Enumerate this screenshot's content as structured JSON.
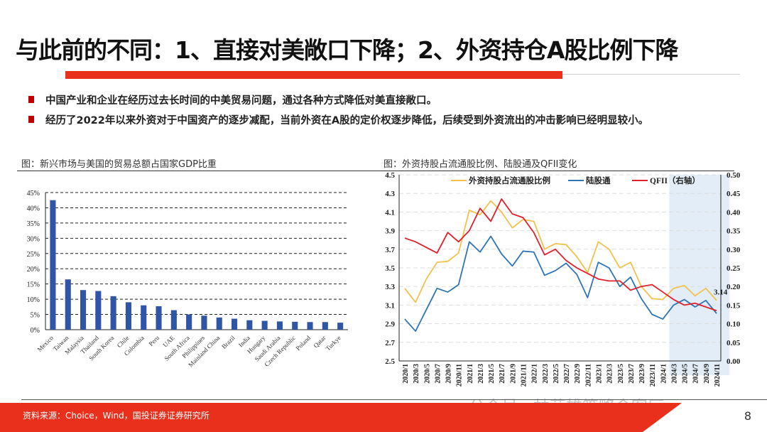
{
  "title": "与此前的不同：1、直接对美敞口下降；2、外资持仓A股比例下降",
  "bullets": [
    "中国产业和企业在经历过去长时间的中美贸易问题，通过各种方式降低对美直接敞口。",
    "经历了2022年以来外资对于中国资产的逐步减配，当前外资在A股的定价权逐步降低，后续受到外资流出的冲击影响已经明显较小。"
  ],
  "captions": [
    "图：新兴市场与美国的贸易总额占国家GDP比重",
    "图：外资持股占流通股比例、陆股通及QFII变化"
  ],
  "source": "资料来源：Choice，Wind，国投证券证券研究所",
  "page_number": "8",
  "watermark": "公众号 · 林荣雄策略会客厅",
  "colors": {
    "accent": "#e8301c",
    "bar": "#2f55a4",
    "yellow": "#f2c14e",
    "blue": "#2e75b6",
    "red": "#e0202a",
    "shade": "#dbe8f5"
  },
  "chart_data": [
    {
      "type": "bar",
      "categories": [
        "Mexico",
        "Taiwan",
        "Malaysia",
        "Thailand",
        "South Korea",
        "Chile",
        "Colombia",
        "Peru",
        "UAE",
        "South Africa",
        "Philippines",
        "Mainland China",
        "Brazil",
        "India",
        "Hungary",
        "Saudi Arabia",
        "Czech Republic",
        "Poland",
        "Qatar",
        "Turkye"
      ],
      "values": [
        42.5,
        16.5,
        13,
        12.7,
        11,
        9,
        8,
        7.7,
        6.4,
        5,
        4.6,
        4,
        3.6,
        3.1,
        2.9,
        2.7,
        2.6,
        2.5,
        2.5,
        2.3
      ],
      "ylim": [
        0,
        45
      ],
      "yticks": [
        "0%",
        "5%",
        "10%",
        "15%",
        "20%",
        "25%",
        "30%",
        "35%",
        "40%",
        "45%"
      ],
      "grid": true
    },
    {
      "type": "line",
      "x": [
        "2020/1",
        "2020/3",
        "2020/5",
        "2020/7",
        "2020/9",
        "2020/11",
        "2021/1",
        "2021/3",
        "2021/5",
        "2021/7",
        "2021/9",
        "2021/11",
        "2022/1",
        "2022/3",
        "2022/5",
        "2022/7",
        "2022/9",
        "2022/11",
        "2023/1",
        "2023/3",
        "2023/5",
        "2023/7",
        "2023/9",
        "2023/11",
        "2024/1",
        "2024/3",
        "2024/5",
        "2024/7",
        "2024/9",
        "2024/11"
      ],
      "series": [
        {
          "name": "外资持股占流通股比例",
          "axis": "left",
          "color": "#f2c14e",
          "values": [
            3.28,
            3.13,
            3.38,
            3.56,
            3.57,
            3.66,
            4.12,
            4.07,
            4.22,
            4.1,
            3.93,
            4.02,
            4.0,
            3.7,
            3.76,
            3.75,
            3.62,
            3.45,
            3.78,
            3.7,
            3.5,
            3.56,
            3.3,
            3.17,
            3.16,
            3.28,
            3.31,
            3.2,
            3.28,
            3.15
          ]
        },
        {
          "name": "陆股通",
          "axis": "left",
          "color": "#2e75b6",
          "values": [
            2.95,
            2.82,
            3.05,
            3.28,
            3.24,
            3.32,
            3.78,
            3.67,
            3.84,
            3.65,
            3.52,
            3.68,
            3.67,
            3.42,
            3.47,
            3.55,
            3.43,
            3.18,
            3.56,
            3.5,
            3.3,
            3.4,
            3.17,
            3.0,
            2.95,
            3.1,
            3.16,
            3.08,
            3.15,
            3.01
          ]
        },
        {
          "name": "QFII（右轴）",
          "axis": "right",
          "color": "#e0202a",
          "values": [
            0.33,
            0.32,
            0.305,
            0.29,
            0.345,
            0.32,
            0.35,
            0.41,
            0.375,
            0.435,
            0.395,
            0.385,
            0.345,
            0.285,
            0.3,
            0.27,
            0.25,
            0.235,
            0.22,
            0.215,
            0.215,
            0.19,
            0.2,
            0.205,
            0.185,
            0.165,
            0.15,
            0.155,
            0.145,
            0.135
          ]
        }
      ],
      "ylim_left": [
        2.5,
        4.5
      ],
      "ylim_right": [
        0,
        0.5
      ],
      "yticks_left": [
        "2.5",
        "2.7",
        "2.9",
        "3.1",
        "3.3",
        "3.5",
        "3.7",
        "3.9",
        "4.1",
        "4.3",
        "4.5"
      ],
      "yticks_right": [
        "0.00",
        "0.05",
        "0.10",
        "0.15",
        "0.20",
        "0.25",
        "0.30",
        "0.35",
        "0.40",
        "0.45",
        "0.50"
      ],
      "shaded_from": "2024/3",
      "annotation": "3.14",
      "legend": "top",
      "grid": true
    }
  ]
}
